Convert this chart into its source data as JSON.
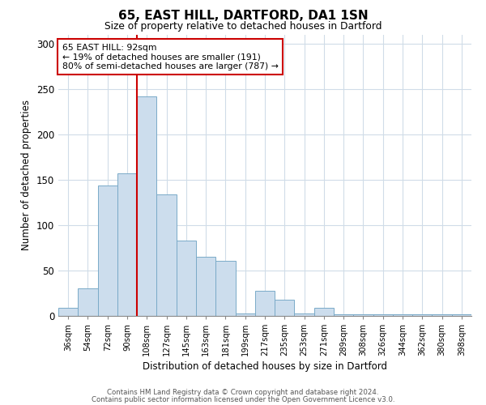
{
  "title": "65, EAST HILL, DARTFORD, DA1 1SN",
  "subtitle": "Size of property relative to detached houses in Dartford",
  "xlabel": "Distribution of detached houses by size in Dartford",
  "ylabel": "Number of detached properties",
  "bar_color": "#ccdded",
  "bar_edge_color": "#7aaac8",
  "categories": [
    "36sqm",
    "54sqm",
    "72sqm",
    "90sqm",
    "108sqm",
    "127sqm",
    "145sqm",
    "163sqm",
    "181sqm",
    "199sqm",
    "217sqm",
    "235sqm",
    "253sqm",
    "271sqm",
    "289sqm",
    "308sqm",
    "326sqm",
    "344sqm",
    "362sqm",
    "380sqm",
    "398sqm"
  ],
  "values": [
    9,
    30,
    144,
    157,
    242,
    134,
    83,
    65,
    61,
    3,
    28,
    18,
    3,
    9,
    2,
    2,
    2,
    2,
    2,
    2,
    2
  ],
  "ylim": [
    0,
    310
  ],
  "yticks": [
    0,
    50,
    100,
    150,
    200,
    250,
    300
  ],
  "vline_index": 3,
  "vline_color": "#cc0000",
  "annotation_text": "65 EAST HILL: 92sqm\n← 19% of detached houses are smaller (191)\n80% of semi-detached houses are larger (787) →",
  "annotation_box_color": "#ffffff",
  "annotation_border_color": "#cc0000",
  "footer_line1": "Contains HM Land Registry data © Crown copyright and database right 2024.",
  "footer_line2": "Contains public sector information licensed under the Open Government Licence v3.0.",
  "background_color": "#ffffff",
  "grid_color": "#d0dce8"
}
